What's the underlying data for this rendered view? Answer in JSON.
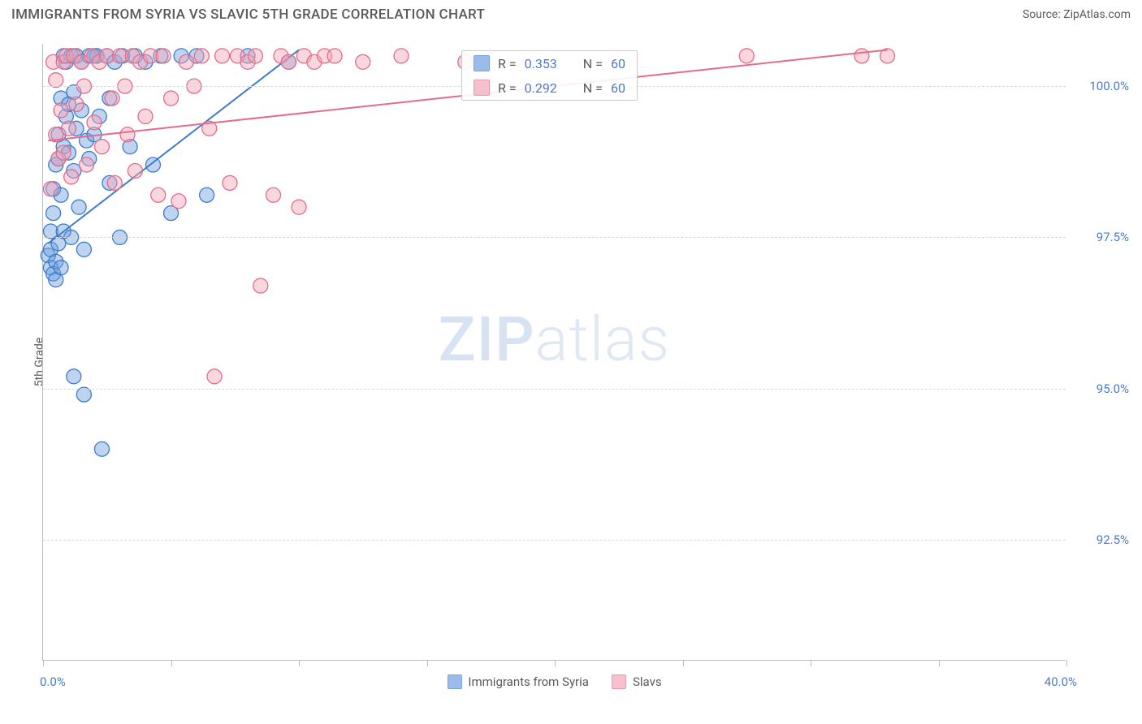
{
  "header": {
    "title": "IMMIGRANTS FROM SYRIA VS SLAVIC 5TH GRADE CORRELATION CHART",
    "source_prefix": "Source: ",
    "source_name": "ZipAtlas.com"
  },
  "chart": {
    "type": "scatter",
    "y_axis_label": "5th Grade",
    "background_color": "#ffffff",
    "grid_color": "#d8d8d8",
    "axis_color": "#bdbdbd",
    "xlim": [
      0,
      40
    ],
    "ylim": [
      90.5,
      100.7
    ],
    "x_tick_positions": [
      0,
      5,
      10,
      15,
      20,
      25,
      30,
      35,
      40
    ],
    "x_min_label": "0.0%",
    "x_max_label": "40.0%",
    "y_ticks": [
      {
        "value": 92.5,
        "label": "92.5%"
      },
      {
        "value": 95.0,
        "label": "95.0%"
      },
      {
        "value": 97.5,
        "label": "97.5%"
      },
      {
        "value": 100.0,
        "label": "100.0%"
      }
    ],
    "y_label_color": "#4a7bc8",
    "x_label_color": "#4a7bc8",
    "point_radius": 9,
    "point_opacity": 0.45,
    "line_width": 2,
    "series": [
      {
        "name": "Immigrants from Syria",
        "key": "syria",
        "color_fill": "#6ea0e0",
        "color_stroke": "#3d7cc9",
        "r_value": "0.353",
        "n_value": "60",
        "trend": {
          "x1": 0.2,
          "y1": 97.4,
          "x2": 10.0,
          "y2": 100.6
        },
        "points": [
          [
            0.2,
            97.2
          ],
          [
            0.3,
            97.6
          ],
          [
            0.3,
            97.3
          ],
          [
            0.3,
            97.0
          ],
          [
            0.4,
            96.9
          ],
          [
            0.4,
            97.9
          ],
          [
            0.4,
            98.3
          ],
          [
            0.5,
            98.7
          ],
          [
            0.5,
            97.1
          ],
          [
            0.5,
            96.8
          ],
          [
            0.6,
            99.2
          ],
          [
            0.6,
            97.4
          ],
          [
            0.6,
            98.8
          ],
          [
            0.7,
            99.8
          ],
          [
            0.7,
            97.0
          ],
          [
            0.7,
            98.2
          ],
          [
            0.8,
            100.5
          ],
          [
            0.8,
            99.0
          ],
          [
            0.8,
            97.6
          ],
          [
            0.9,
            99.5
          ],
          [
            0.9,
            100.4
          ],
          [
            1.0,
            98.9
          ],
          [
            1.0,
            99.7
          ],
          [
            1.1,
            100.5
          ],
          [
            1.1,
            97.5
          ],
          [
            1.2,
            98.6
          ],
          [
            1.2,
            99.9
          ],
          [
            1.2,
            95.2
          ],
          [
            1.3,
            100.5
          ],
          [
            1.3,
            99.3
          ],
          [
            1.4,
            98.0
          ],
          [
            1.5,
            100.4
          ],
          [
            1.5,
            99.6
          ],
          [
            1.6,
            97.3
          ],
          [
            1.6,
            94.9
          ],
          [
            1.7,
            99.1
          ],
          [
            1.8,
            100.5
          ],
          [
            1.8,
            98.8
          ],
          [
            2.0,
            100.5
          ],
          [
            2.0,
            99.2
          ],
          [
            2.1,
            100.5
          ],
          [
            2.2,
            99.5
          ],
          [
            2.3,
            94.0
          ],
          [
            2.5,
            100.5
          ],
          [
            2.6,
            98.4
          ],
          [
            2.6,
            99.8
          ],
          [
            2.8,
            100.4
          ],
          [
            3.0,
            97.5
          ],
          [
            3.1,
            100.5
          ],
          [
            3.4,
            99.0
          ],
          [
            3.6,
            100.5
          ],
          [
            4.0,
            100.4
          ],
          [
            4.3,
            98.7
          ],
          [
            4.6,
            100.5
          ],
          [
            5.0,
            97.9
          ],
          [
            5.4,
            100.5
          ],
          [
            6.0,
            100.5
          ],
          [
            6.4,
            98.2
          ],
          [
            8.0,
            100.5
          ],
          [
            9.6,
            100.4
          ]
        ]
      },
      {
        "name": "Slavs",
        "key": "slavs",
        "color_fill": "#f4a6b8",
        "color_stroke": "#e56b8a",
        "r_value": "0.292",
        "n_value": "60",
        "trend": {
          "x1": 0.2,
          "y1": 99.1,
          "x2": 33.0,
          "y2": 100.6
        },
        "points": [
          [
            0.3,
            98.3
          ],
          [
            0.4,
            100.4
          ],
          [
            0.5,
            99.2
          ],
          [
            0.5,
            100.1
          ],
          [
            0.6,
            98.8
          ],
          [
            0.7,
            99.6
          ],
          [
            0.8,
            100.4
          ],
          [
            0.8,
            98.9
          ],
          [
            0.9,
            100.5
          ],
          [
            1.0,
            99.3
          ],
          [
            1.1,
            98.5
          ],
          [
            1.2,
            100.5
          ],
          [
            1.3,
            99.7
          ],
          [
            1.5,
            100.4
          ],
          [
            1.6,
            100.0
          ],
          [
            1.7,
            98.7
          ],
          [
            1.9,
            100.5
          ],
          [
            2.0,
            99.4
          ],
          [
            2.2,
            100.4
          ],
          [
            2.3,
            99.0
          ],
          [
            2.5,
            100.5
          ],
          [
            2.7,
            99.8
          ],
          [
            2.8,
            98.4
          ],
          [
            3.0,
            100.5
          ],
          [
            3.2,
            100.0
          ],
          [
            3.3,
            99.2
          ],
          [
            3.5,
            100.5
          ],
          [
            3.6,
            98.6
          ],
          [
            3.8,
            100.4
          ],
          [
            4.0,
            99.5
          ],
          [
            4.2,
            100.5
          ],
          [
            4.5,
            98.2
          ],
          [
            4.7,
            100.5
          ],
          [
            5.0,
            99.8
          ],
          [
            5.3,
            98.1
          ],
          [
            5.6,
            100.4
          ],
          [
            5.9,
            100.0
          ],
          [
            6.2,
            100.5
          ],
          [
            6.5,
            99.3
          ],
          [
            6.7,
            95.2
          ],
          [
            7.0,
            100.5
          ],
          [
            7.3,
            98.4
          ],
          [
            7.6,
            100.5
          ],
          [
            8.0,
            100.4
          ],
          [
            8.3,
            100.5
          ],
          [
            8.5,
            96.7
          ],
          [
            9.0,
            98.2
          ],
          [
            9.3,
            100.5
          ],
          [
            9.6,
            100.4
          ],
          [
            10.0,
            98.0
          ],
          [
            10.2,
            100.5
          ],
          [
            10.6,
            100.4
          ],
          [
            11.0,
            100.5
          ],
          [
            11.4,
            100.5
          ],
          [
            12.5,
            100.4
          ],
          [
            14.0,
            100.5
          ],
          [
            16.5,
            100.4
          ],
          [
            27.5,
            100.5
          ],
          [
            32.0,
            100.5
          ],
          [
            33.0,
            100.5
          ]
        ]
      }
    ],
    "legend_top": {
      "r_label": "R = ",
      "n_label": "N = "
    },
    "watermark": {
      "bold": "ZIP",
      "light": "atlas"
    }
  },
  "title_fontsize": 17,
  "label_fontsize": 14,
  "tick_fontsize": 15
}
